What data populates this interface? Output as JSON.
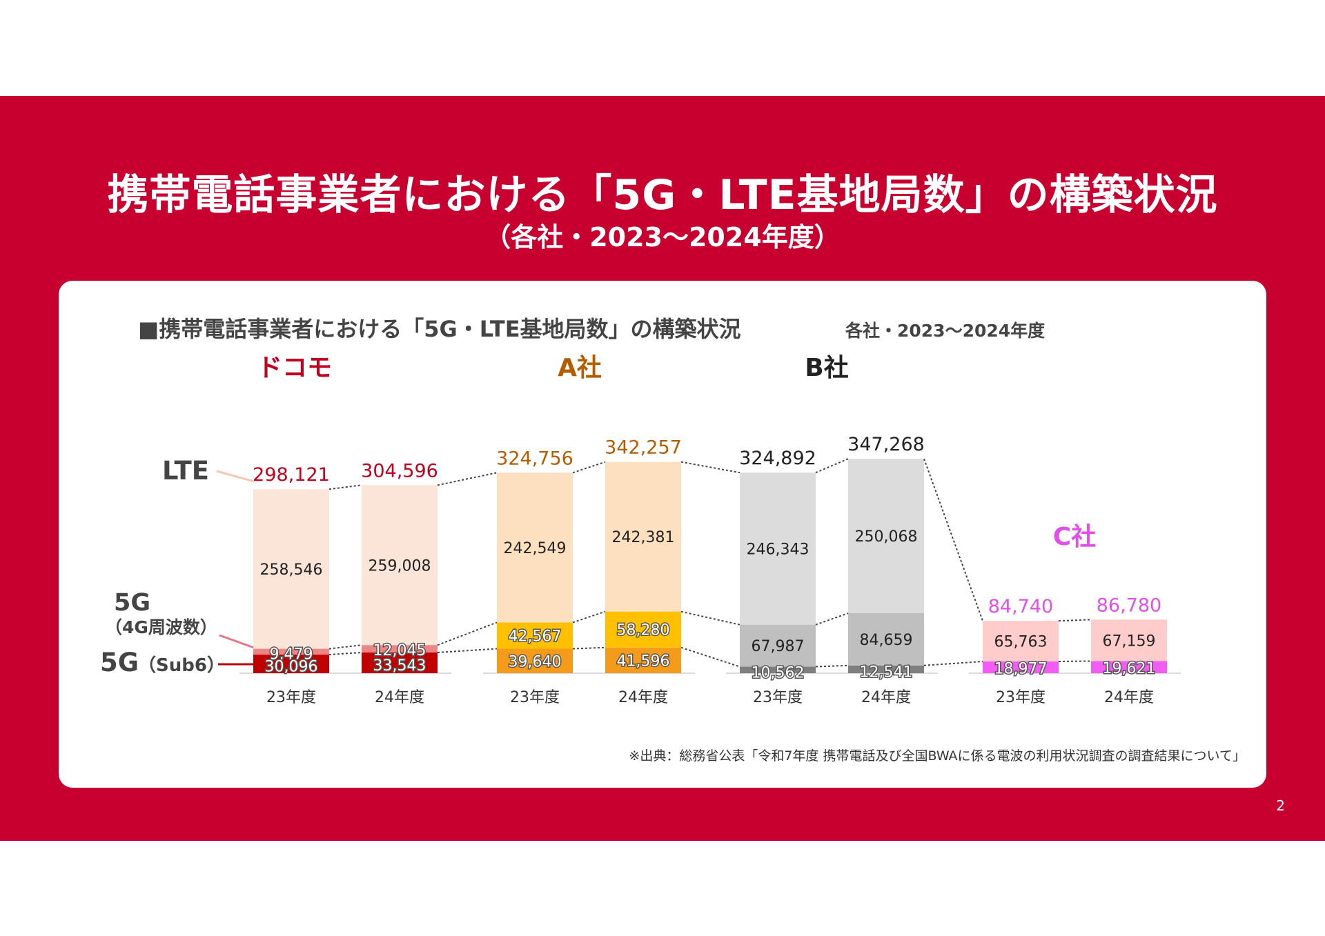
{
  "slide": {
    "title": "携帯電話事業者における「5G・LTE基地局数」の構築状況",
    "subtitle": "（各社・2023～2024年度）",
    "page_number": "2"
  },
  "chart_data": {
    "type": "bar",
    "stacked": true,
    "title": "■携帯電話事業者における「5G・LTE基地局数」の構築状況",
    "subtitle": "各社・2023～2024年度",
    "source": "※出典：総務省公表「令和7年度 携帯電話及び全国BWAに係る電波の利用状況調査の調査結果について」",
    "series_labels": {
      "lte": "LTE",
      "g5_4g_main": "5G",
      "g5_4g_sub": "（4G周波数）",
      "g5_sub6_main": "5G",
      "g5_sub6_sub": "（Sub6）"
    },
    "ylim": [
      0,
      360000
    ],
    "groups": [
      {
        "company": "ドコモ",
        "color": "#c0001c",
        "colors": {
          "sub6": "#c00000",
          "g4": "#ee8585",
          "lte": "#fbe4d8"
        },
        "bars": [
          {
            "category": "23年度",
            "total": "298,121",
            "sub6": 30096,
            "g4": 9479,
            "lte": 258546,
            "sub6_label": "30,096",
            "g4_label": "9,479",
            "lte_label": "258,546"
          },
          {
            "category": "24年度",
            "total": "304,596",
            "sub6": 33543,
            "g4": 12045,
            "lte": 259008,
            "sub6_label": "33,543",
            "g4_label": "12,045",
            "lte_label": "259,008"
          }
        ]
      },
      {
        "company": "A社",
        "color": "#b35c00",
        "colors": {
          "sub6": "#f59b1c",
          "g4": "#ffc000",
          "lte": "#fde0c0"
        },
        "bars": [
          {
            "category": "23年度",
            "total": "324,756",
            "sub6": 39640,
            "g4": 42567,
            "lte": 242549,
            "sub6_label": "39,640",
            "g4_label": "42,567",
            "lte_label": "242,549"
          },
          {
            "category": "24年度",
            "total": "342,257",
            "sub6": 41596,
            "g4": 58280,
            "lte": 242381,
            "sub6_label": "41,596",
            "g4_label": "58,280",
            "lte_label": "242,381"
          }
        ]
      },
      {
        "company": "B社",
        "color": "#222222",
        "colors": {
          "sub6": "#7f7f7f",
          "g4": "#bfbfbf",
          "lte": "#dcdcdc"
        },
        "bars": [
          {
            "category": "23年度",
            "total": "324,892",
            "sub6": 10562,
            "g4": 67987,
            "lte": 246343,
            "sub6_label": "10,562",
            "g4_label": "67,987",
            "lte_label": "246,343"
          },
          {
            "category": "24年度",
            "total": "347,268",
            "sub6": 12541,
            "g4": 84659,
            "lte": 250068,
            "sub6_label": "12,541",
            "g4_label": "84,659",
            "lte_label": "250,068"
          }
        ]
      },
      {
        "company": "C社",
        "color": "#e050e8",
        "colors": {
          "sub6": "#f25cf2",
          "g4": "#ffcccc",
          "lte": "#ffcccc"
        },
        "bars": [
          {
            "category": "23年度",
            "total": "84,740",
            "sub6": 18977,
            "g4": 65763,
            "lte": 0,
            "sub6_label": "18,977",
            "g4_label": "65,763",
            "lte_label": ""
          },
          {
            "category": "24年度",
            "total": "86,780",
            "sub6": 19621,
            "g4": 67159,
            "lte": 0,
            "sub6_label": "19,621",
            "g4_label": "67,159",
            "lte_label": ""
          }
        ]
      }
    ]
  }
}
